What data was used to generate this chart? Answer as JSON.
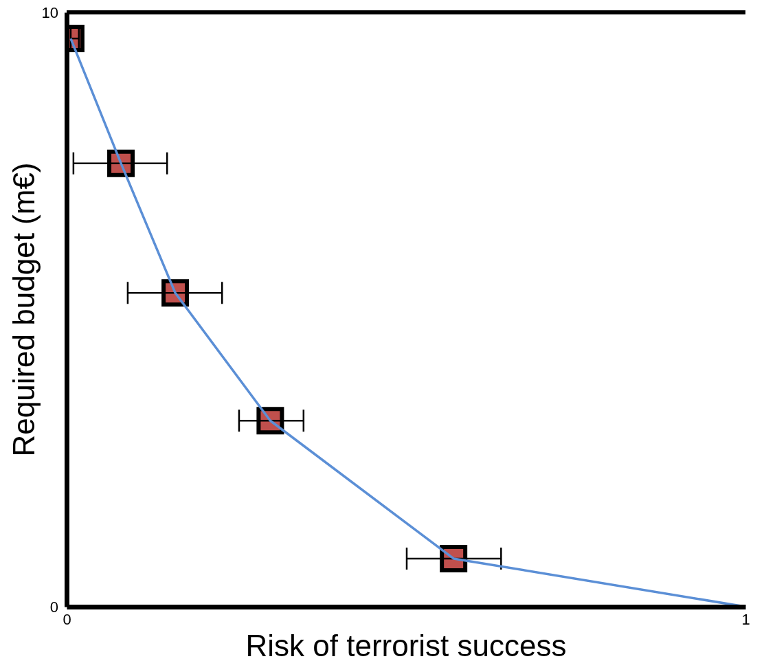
{
  "chart_data": {
    "type": "line",
    "xlabel": "Risk of terrorist success",
    "ylabel": "Required budget (m€)",
    "xlim": [
      0,
      1
    ],
    "xticks": [
      0,
      1
    ],
    "ylim": [
      0,
      10
    ],
    "yticks": [
      0,
      10
    ],
    "series": [
      {
        "color": "#5b8fd6",
        "x": [
          0.006,
          0.08,
          0.16,
          0.3,
          0.57,
          1
        ],
        "values": [
          9.56,
          7.46,
          5.28,
          3.13,
          0.81,
          0
        ]
      },
      {
        "type": "scatter",
        "marker": "square",
        "color": "#c0504d",
        "x": [
          0.006,
          0.08,
          0.16,
          0.3,
          0.57
        ],
        "values": [
          9.56,
          7.46,
          5.28,
          3.13,
          0.81
        ],
        "xerrors": [
          [
            0.006,
            0.018
          ],
          [
            0.01,
            0.148
          ],
          [
            0.09,
            0.229
          ],
          [
            0.254,
            0.349
          ],
          [
            0.501,
            0.64
          ]
        ]
      }
    ]
  }
}
